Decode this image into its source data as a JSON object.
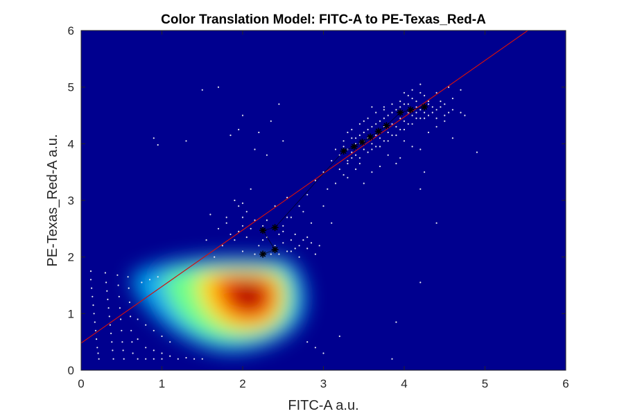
{
  "chart_data": {
    "type": "scatter",
    "title": "Color Translation Model: FITC-A to PE-Texas_Red-A",
    "xlabel": "FITC-A a.u.",
    "ylabel": "PE-Texas_Red-A a.u.",
    "xlim": [
      0,
      6
    ],
    "ylim": [
      0,
      6
    ],
    "x_ticks": [
      "0",
      "1",
      "2",
      "3",
      "4",
      "5",
      "6"
    ],
    "y_ticks": [
      "0",
      "1",
      "2",
      "3",
      "4",
      "5",
      "6"
    ],
    "grid": false,
    "legend": "none",
    "background_color": "#00008f",
    "density": {
      "colormap": "jet",
      "peak": {
        "x": 2.2,
        "y": 1.3
      }
    },
    "fit_line": {
      "color": "#d01010",
      "points": [
        [
          0,
          0.48
        ],
        [
          5.53,
          6.0
        ]
      ]
    },
    "bin_means": {
      "color": "#000000",
      "marker": "asterisk",
      "points": [
        [
          2.25,
          2.05
        ],
        [
          2.4,
          2.13
        ],
        [
          2.25,
          2.47
        ],
        [
          2.4,
          2.52
        ],
        [
          3.25,
          3.87
        ],
        [
          3.38,
          3.95
        ],
        [
          3.48,
          4.03
        ],
        [
          3.58,
          4.12
        ],
        [
          3.68,
          4.22
        ],
        [
          3.78,
          4.32
        ],
        [
          3.95,
          4.55
        ],
        [
          4.08,
          4.6
        ],
        [
          4.25,
          4.65
        ]
      ]
    },
    "series": [
      {
        "color": "#e8e8f0",
        "points": [
          [
            0.12,
            1.75
          ],
          [
            0.12,
            1.6
          ],
          [
            0.13,
            1.45
          ],
          [
            0.14,
            1.3
          ],
          [
            0.15,
            1.15
          ],
          [
            0.16,
            1.0
          ],
          [
            0.17,
            0.85
          ],
          [
            0.18,
            0.7
          ],
          [
            0.19,
            0.55
          ],
          [
            0.2,
            0.4
          ],
          [
            0.21,
            0.3
          ],
          [
            0.22,
            0.2
          ],
          [
            0.3,
            1.72
          ],
          [
            0.31,
            1.55
          ],
          [
            0.32,
            1.4
          ],
          [
            0.33,
            1.25
          ],
          [
            0.34,
            1.1
          ],
          [
            0.35,
            0.95
          ],
          [
            0.36,
            0.8
          ],
          [
            0.37,
            0.65
          ],
          [
            0.38,
            0.5
          ],
          [
            0.39,
            0.35
          ],
          [
            0.4,
            0.2
          ],
          [
            0.45,
            1.68
          ],
          [
            0.46,
            1.5
          ],
          [
            0.47,
            1.3
          ],
          [
            0.48,
            1.1
          ],
          [
            0.49,
            0.9
          ],
          [
            0.5,
            0.7
          ],
          [
            0.51,
            0.5
          ],
          [
            0.52,
            0.35
          ],
          [
            0.53,
            0.2
          ],
          [
            0.58,
            1.65
          ],
          [
            0.59,
            1.45
          ],
          [
            0.6,
            1.2
          ],
          [
            0.61,
            0.95
          ],
          [
            0.62,
            0.7
          ],
          [
            0.63,
            0.5
          ],
          [
            0.64,
            0.3
          ],
          [
            0.7,
            0.2
          ],
          [
            0.8,
            0.2
          ],
          [
            0.9,
            0.2
          ],
          [
            1.0,
            0.2
          ],
          [
            1.1,
            0.25
          ],
          [
            1.2,
            0.2
          ],
          [
            1.3,
            0.22
          ],
          [
            1.4,
            0.2
          ],
          [
            1.5,
            0.2
          ],
          [
            0.75,
            1.55
          ],
          [
            0.85,
            1.6
          ],
          [
            0.95,
            1.65
          ],
          [
            0.7,
            0.9
          ],
          [
            0.8,
            0.8
          ],
          [
            0.9,
            0.7
          ],
          [
            1.0,
            0.6
          ],
          [
            1.1,
            0.5
          ],
          [
            0.8,
            0.4
          ],
          [
            0.9,
            0.35
          ],
          [
            0.7,
            0.55
          ],
          [
            1.0,
            0.3
          ],
          [
            2.8,
            0.5
          ],
          [
            2.9,
            0.4
          ],
          [
            3.0,
            0.3
          ],
          [
            3.2,
            0.6
          ],
          [
            1.5,
            4.95
          ],
          [
            1.7,
            5.0
          ],
          [
            1.3,
            4.05
          ],
          [
            0.9,
            4.1
          ],
          [
            0.95,
            3.98
          ],
          [
            2.0,
            4.5
          ],
          [
            2.2,
            4.2
          ],
          [
            2.35,
            4.4
          ],
          [
            2.45,
            4.7
          ],
          [
            1.85,
            4.15
          ],
          [
            2.5,
            4.05
          ],
          [
            1.95,
            4.25
          ],
          [
            2.15,
            3.9
          ],
          [
            2.3,
            3.8
          ],
          [
            1.8,
            2.6
          ],
          [
            1.9,
            2.3
          ],
          [
            2.0,
            2.7
          ],
          [
            2.1,
            2.5
          ],
          [
            2.2,
            2.2
          ],
          [
            2.3,
            2.35
          ],
          [
            2.45,
            2.4
          ],
          [
            2.5,
            2.25
          ],
          [
            2.55,
            2.1
          ],
          [
            2.6,
            2.3
          ],
          [
            2.7,
            2.2
          ],
          [
            2.8,
            2.15
          ],
          [
            2.9,
            2.05
          ],
          [
            2.65,
            2.4
          ],
          [
            2.0,
            2.1
          ],
          [
            2.05,
            2.35
          ],
          [
            2.15,
            2.05
          ],
          [
            2.25,
            2.3
          ],
          [
            2.35,
            2.05
          ],
          [
            1.7,
            2.5
          ],
          [
            1.95,
            2.45
          ],
          [
            2.7,
            2.0
          ],
          [
            2.8,
            2.35
          ],
          [
            2.85,
            2.25
          ],
          [
            2.75,
            2.3
          ],
          [
            2.6,
            2.1
          ],
          [
            2.4,
            2.2
          ],
          [
            2.5,
            2.45
          ],
          [
            3.3,
            3.65
          ],
          [
            3.45,
            3.75
          ],
          [
            3.55,
            3.85
          ],
          [
            3.65,
            3.95
          ],
          [
            3.75,
            4.05
          ],
          [
            3.85,
            4.15
          ],
          [
            3.95,
            4.25
          ],
          [
            4.05,
            4.35
          ],
          [
            4.15,
            4.45
          ],
          [
            4.25,
            4.55
          ],
          [
            3.4,
            4.1
          ],
          [
            3.5,
            4.2
          ],
          [
            3.6,
            4.3
          ],
          [
            3.7,
            4.4
          ],
          [
            3.8,
            4.5
          ],
          [
            3.9,
            4.6
          ],
          [
            4.0,
            4.7
          ],
          [
            4.1,
            4.8
          ],
          [
            4.2,
            4.9
          ],
          [
            4.3,
            4.75
          ],
          [
            3.25,
            3.95
          ],
          [
            3.35,
            3.85
          ],
          [
            3.45,
            4.0
          ],
          [
            3.55,
            4.1
          ],
          [
            3.65,
            4.15
          ],
          [
            3.75,
            4.3
          ],
          [
            3.85,
            4.35
          ],
          [
            3.95,
            4.45
          ],
          [
            4.05,
            4.55
          ],
          [
            4.15,
            4.65
          ],
          [
            4.35,
            4.65
          ],
          [
            4.45,
            4.75
          ],
          [
            4.55,
            5.0
          ],
          [
            4.6,
            4.6
          ],
          [
            4.7,
            4.55
          ],
          [
            4.75,
            4.5
          ],
          [
            4.4,
            4.9
          ],
          [
            3.1,
            3.7
          ],
          [
            3.2,
            3.55
          ],
          [
            3.6,
            3.5
          ],
          [
            3.7,
            3.6
          ],
          [
            4.3,
            4.2
          ],
          [
            4.4,
            4.3
          ],
          [
            3.85,
            4.7
          ],
          [
            3.75,
            4.6
          ],
          [
            4.1,
            4.95
          ],
          [
            4.2,
            5.05
          ],
          [
            4.0,
            4.05
          ],
          [
            3.95,
            3.75
          ],
          [
            4.5,
            4.4
          ],
          [
            4.2,
            3.9
          ],
          [
            3.5,
            4.4
          ],
          [
            3.3,
            4.2
          ],
          [
            4.0,
            4.9
          ],
          [
            3.6,
            4.65
          ],
          [
            4.1,
            3.95
          ],
          [
            3.8,
            3.8
          ],
          [
            4.25,
            3.5
          ],
          [
            4.9,
            3.85
          ],
          [
            4.4,
            2.6
          ],
          [
            3.35,
            4.25
          ],
          [
            3.4,
            3.55
          ],
          [
            4.7,
            4.95
          ],
          [
            1.9,
            3.0
          ],
          [
            2.1,
            3.2
          ],
          [
            2.0,
            2.95
          ],
          [
            2.8,
            3.1
          ],
          [
            2.9,
            3.35
          ],
          [
            2.7,
            2.9
          ],
          [
            3.1,
            2.6
          ],
          [
            2.6,
            2.7
          ],
          [
            3.9,
            3.65
          ],
          [
            2.55,
            3.05
          ],
          [
            4.2,
            1.55
          ],
          [
            3.9,
            0.85
          ],
          [
            3.85,
            0.2
          ],
          [
            4.2,
            3.2
          ],
          [
            3.5,
            3.3
          ],
          [
            4.6,
            4.1
          ],
          [
            1.6,
            2.75
          ],
          [
            1.55,
            2.3
          ],
          [
            1.65,
            2.0
          ],
          [
            2.85,
            2.6
          ],
          [
            3.0,
            2.9
          ],
          [
            2.4,
            2.9
          ],
          [
            2.55,
            2.7
          ],
          [
            2.3,
            2.65
          ],
          [
            2.0,
            2.55
          ],
          [
            1.85,
            2.4
          ],
          [
            1.75,
            2.2
          ],
          [
            2.95,
            2.2
          ],
          [
            2.65,
            2.15
          ],
          [
            2.45,
            2.05
          ],
          [
            2.5,
            2.55
          ],
          [
            2.25,
            2.55
          ],
          [
            2.15,
            2.65
          ],
          [
            2.05,
            2.8
          ],
          [
            1.95,
            2.9
          ],
          [
            1.8,
            2.7
          ],
          [
            3.15,
            3.3
          ],
          [
            3.25,
            3.45
          ],
          [
            3.0,
            3.5
          ],
          [
            3.05,
            3.2
          ],
          [
            3.3,
            3.4
          ],
          [
            2.75,
            2.8
          ],
          [
            3.45,
            4.35
          ],
          [
            3.55,
            4.45
          ],
          [
            3.65,
            4.55
          ],
          [
            3.75,
            4.65
          ],
          [
            3.95,
            4.75
          ],
          [
            4.05,
            4.85
          ],
          [
            4.15,
            4.75
          ],
          [
            4.25,
            4.85
          ],
          [
            3.2,
            3.8
          ],
          [
            3.3,
            3.9
          ],
          [
            3.4,
            4.0
          ],
          [
            3.5,
            4.05
          ],
          [
            3.6,
            4.0
          ],
          [
            3.7,
            4.1
          ],
          [
            3.8,
            4.2
          ],
          [
            3.9,
            4.3
          ],
          [
            4.0,
            4.4
          ],
          [
            4.1,
            4.5
          ],
          [
            4.2,
            4.6
          ],
          [
            4.3,
            4.7
          ],
          [
            4.4,
            4.6
          ],
          [
            4.5,
            4.7
          ],
          [
            4.6,
            4.8
          ],
          [
            3.15,
            3.9
          ],
          [
            3.25,
            4.05
          ],
          [
            3.35,
            4.1
          ],
          [
            3.45,
            4.15
          ],
          [
            3.55,
            4.25
          ],
          [
            3.65,
            4.35
          ],
          [
            3.75,
            4.45
          ],
          [
            3.85,
            4.55
          ],
          [
            3.95,
            4.65
          ],
          [
            4.05,
            4.7
          ],
          [
            4.15,
            4.55
          ],
          [
            4.25,
            4.45
          ],
          [
            4.35,
            4.55
          ],
          [
            4.45,
            4.65
          ],
          [
            4.55,
            4.55
          ],
          [
            3.6,
            3.9
          ],
          [
            3.7,
            3.95
          ],
          [
            3.8,
            4.05
          ],
          [
            3.9,
            4.15
          ],
          [
            4.0,
            4.25
          ],
          [
            4.1,
            4.35
          ],
          [
            4.2,
            4.45
          ],
          [
            4.3,
            4.5
          ],
          [
            4.4,
            4.45
          ],
          [
            4.5,
            4.5
          ],
          [
            3.4,
            3.8
          ],
          [
            3.5,
            3.9
          ],
          [
            3.3,
            3.7
          ],
          [
            3.45,
            3.65
          ],
          [
            3.35,
            3.75
          ]
        ]
      }
    ]
  }
}
